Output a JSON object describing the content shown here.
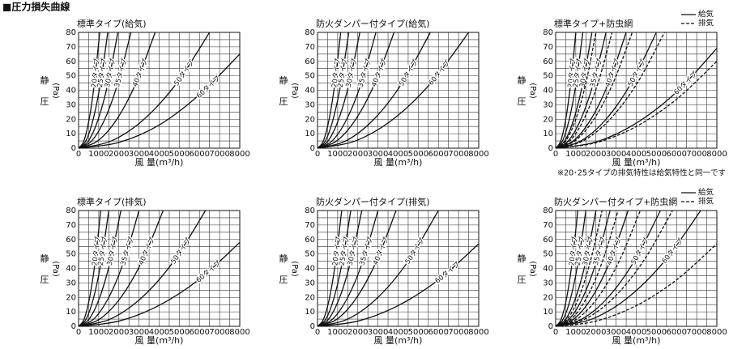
{
  "title": "■圧力損失曲線",
  "note": "※20･25タイプの排気特性は給気特性と同一です",
  "chart_data": [
    {
      "type": "line",
      "title": "標準タイプ(給気)",
      "x_label": "風 量(m³/h)",
      "y_label": [
        "静",
        "(Pa)",
        "圧"
      ],
      "xlim": [
        0,
        8000
      ],
      "ylim": [
        0,
        80
      ],
      "xticks": [
        0,
        1000,
        2000,
        3000,
        4000,
        5000,
        6000,
        7000,
        8000
      ],
      "yticks": [
        0,
        10,
        20,
        30,
        40,
        50,
        60,
        70,
        80
      ],
      "grid": true,
      "color": "#111111",
      "series": [
        {
          "name": "20タイプ",
          "x": [
            0,
            263,
            525,
            788,
            1050
          ],
          "values": [
            0,
            5,
            20,
            45,
            80
          ]
        },
        {
          "name": "25タイプ",
          "x": [
            0,
            363,
            725,
            1088,
            1450
          ],
          "values": [
            0,
            5,
            20,
            45,
            80
          ]
        },
        {
          "name": "30タイプ",
          "x": [
            0,
            488,
            975,
            1463,
            1950
          ],
          "values": [
            0,
            5,
            20,
            45,
            80
          ]
        },
        {
          "name": "35タイプ",
          "x": [
            0,
            650,
            1300,
            1950,
            2600
          ],
          "values": [
            0,
            5,
            20,
            45,
            80
          ]
        },
        {
          "name": "40タイプ",
          "x": [
            0,
            950,
            1900,
            2850,
            3800
          ],
          "values": [
            0,
            5,
            20,
            45,
            80
          ]
        },
        {
          "name": "50タイプ",
          "x": [
            0,
            1625,
            3250,
            4875,
            6500
          ],
          "values": [
            0,
            5,
            20,
            45,
            80
          ]
        },
        {
          "name": "60タイプ",
          "x": [
            0,
            2000,
            4000,
            6000,
            8000
          ],
          "values": [
            0,
            4,
            16,
            37,
            65
          ]
        }
      ]
    },
    {
      "type": "line",
      "title": "防火ダンパー付タイプ(給気)",
      "x_label": "風 量(m³/h)",
      "y_label": [
        "静",
        "(Pa)",
        "圧"
      ],
      "xlim": [
        0,
        8000
      ],
      "ylim": [
        0,
        80
      ],
      "xticks": [
        0,
        1000,
        2000,
        3000,
        4000,
        5000,
        6000,
        7000,
        8000
      ],
      "yticks": [
        0,
        10,
        20,
        30,
        40,
        50,
        60,
        70,
        80
      ],
      "grid": true,
      "color": "#111111",
      "series": [
        {
          "name": "20タイプ",
          "x": [
            0,
            288,
            575,
            863,
            1150
          ],
          "values": [
            0,
            5,
            20,
            45,
            80
          ]
        },
        {
          "name": "25タイプ",
          "x": [
            0,
            388,
            775,
            1163,
            1550
          ],
          "values": [
            0,
            5,
            20,
            45,
            80
          ]
        },
        {
          "name": "30タイプ",
          "x": [
            0,
            525,
            1050,
            1575,
            2100
          ],
          "values": [
            0,
            5,
            20,
            45,
            80
          ]
        },
        {
          "name": "35タイプ",
          "x": [
            0,
            725,
            1450,
            2175,
            2900
          ],
          "values": [
            0,
            5,
            20,
            45,
            80
          ]
        },
        {
          "name": "40タイプ",
          "x": [
            0,
            950,
            1900,
            2850,
            3800
          ],
          "values": [
            0,
            5,
            20,
            45,
            80
          ]
        },
        {
          "name": "50タイプ",
          "x": [
            0,
            1400,
            2800,
            4200,
            5600
          ],
          "values": [
            0,
            5,
            20,
            45,
            80
          ]
        },
        {
          "name": "60タイプ",
          "x": [
            0,
            1875,
            3750,
            5625,
            7500
          ],
          "values": [
            0,
            5,
            20,
            45,
            80
          ]
        }
      ]
    },
    {
      "type": "line",
      "title": "標準タイプ+防虫網",
      "x_label": "風 量(m³/h)",
      "y_label": [
        "静",
        "(Pa)",
        "圧"
      ],
      "xlim": [
        0,
        8000
      ],
      "ylim": [
        0,
        80
      ],
      "xticks": [
        0,
        1000,
        2000,
        3000,
        4000,
        5000,
        6000,
        7000,
        8000
      ],
      "yticks": [
        0,
        10,
        20,
        30,
        40,
        50,
        60,
        70,
        80
      ],
      "grid": true,
      "color": "#111111",
      "legend": [
        {
          "label": "給気",
          "dash": "solid"
        },
        {
          "label": "排気",
          "dash": "dashed"
        }
      ],
      "series": [
        {
          "name": "20タイプ",
          "dash": "solid",
          "x": [
            0,
            250,
            500,
            750,
            1000
          ],
          "values": [
            0,
            5,
            20,
            45,
            80
          ]
        },
        {
          "name": "25タイプ",
          "dash": "solid",
          "x": [
            0,
            338,
            675,
            1013,
            1350
          ],
          "values": [
            0,
            5,
            20,
            45,
            80
          ]
        },
        {
          "name": "30タイプ",
          "dash": "solid",
          "x": [
            0,
            450,
            900,
            1350,
            1800
          ],
          "values": [
            0,
            5,
            20,
            45,
            80
          ]
        },
        {
          "name": "35タイプ",
          "dash": "solid",
          "x": [
            0,
            625,
            1250,
            1875,
            2500
          ],
          "values": [
            0,
            5,
            20,
            45,
            80
          ]
        },
        {
          "name": "40タイプ",
          "dash": "solid",
          "x": [
            0,
            875,
            1750,
            2625,
            3500
          ],
          "values": [
            0,
            5,
            20,
            45,
            80
          ]
        },
        {
          "name": "50タイプ",
          "dash": "solid",
          "x": [
            0,
            1250,
            2500,
            3750,
            5000
          ],
          "values": [
            0,
            5,
            20,
            45,
            80
          ]
        },
        {
          "name": "60タイプ",
          "dash": "solid",
          "x": [
            0,
            2000,
            4000,
            6000,
            8000
          ],
          "values": [
            0,
            4.3,
            17.3,
            38.8,
            69
          ]
        },
        {
          "dash": "dashed",
          "x": [
            0,
            500,
            1000,
            1500,
            2000
          ],
          "values": [
            0,
            5,
            20,
            45,
            80
          ]
        },
        {
          "dash": "dashed",
          "x": [
            0,
            700,
            1400,
            2100,
            2800
          ],
          "values": [
            0,
            5,
            20,
            45,
            80
          ]
        },
        {
          "dash": "dashed",
          "x": [
            0,
            950,
            1900,
            2850,
            3800
          ],
          "values": [
            0,
            5,
            20,
            45,
            80
          ]
        },
        {
          "dash": "dashed",
          "x": [
            0,
            1350,
            2700,
            4050,
            5400
          ],
          "values": [
            0,
            5,
            20,
            45,
            80
          ]
        },
        {
          "dash": "dashed",
          "x": [
            0,
            2000,
            4000,
            6000,
            8000
          ],
          "values": [
            0,
            3.8,
            15,
            33.8,
            60
          ]
        }
      ]
    },
    {
      "type": "line",
      "title": "標準タイプ(排気)",
      "x_label": "風 量(m³/h)",
      "y_label": [
        "静",
        "(Pa)",
        "圧"
      ],
      "xlim": [
        0,
        8000
      ],
      "ylim": [
        0,
        80
      ],
      "xticks": [
        0,
        1000,
        2000,
        3000,
        4000,
        5000,
        6000,
        7000,
        8000
      ],
      "yticks": [
        0,
        10,
        20,
        30,
        40,
        50,
        60,
        70,
        80
      ],
      "grid": true,
      "color": "#111111",
      "series": [
        {
          "name": "20タイプ",
          "x": [
            0,
            275,
            550,
            825,
            1100
          ],
          "values": [
            0,
            5,
            20,
            45,
            80
          ]
        },
        {
          "name": "25タイプ",
          "x": [
            0,
            375,
            750,
            1125,
            1500
          ],
          "values": [
            0,
            5,
            20,
            45,
            80
          ]
        },
        {
          "name": "30タイプ",
          "x": [
            0,
            525,
            1050,
            1575,
            2100
          ],
          "values": [
            0,
            5,
            20,
            45,
            80
          ]
        },
        {
          "name": "35タイプ",
          "x": [
            0,
            750,
            1500,
            2250,
            3000
          ],
          "values": [
            0,
            5,
            20,
            45,
            80
          ]
        },
        {
          "name": "40タイプ",
          "x": [
            0,
            1050,
            2100,
            3150,
            4200
          ],
          "values": [
            0,
            5,
            20,
            45,
            80
          ]
        },
        {
          "name": "50タイプ",
          "x": [
            0,
            1575,
            3150,
            4725,
            6300
          ],
          "values": [
            0,
            5,
            20,
            45,
            80
          ]
        },
        {
          "name": "60タイプ",
          "x": [
            0,
            2000,
            4000,
            6000,
            8000
          ],
          "values": [
            0,
            3.6,
            14.5,
            32.6,
            58
          ]
        }
      ]
    },
    {
      "type": "line",
      "title": "防火ダンパー付タイプ(排気)",
      "x_label": "風 量(m³/h)",
      "y_label": [
        "静",
        "(Pa)",
        "圧"
      ],
      "xlim": [
        0,
        8000
      ],
      "ylim": [
        0,
        80
      ],
      "xticks": [
        0,
        1000,
        2000,
        3000,
        4000,
        5000,
        6000,
        7000,
        8000
      ],
      "yticks": [
        0,
        10,
        20,
        30,
        40,
        50,
        60,
        70,
        80
      ],
      "grid": true,
      "color": "#111111",
      "series": [
        {
          "name": "20タイプ",
          "x": [
            0,
            300,
            600,
            900,
            1200
          ],
          "values": [
            0,
            5,
            20,
            45,
            80
          ]
        },
        {
          "name": "25タイプ",
          "x": [
            0,
            413,
            825,
            1238,
            1650
          ],
          "values": [
            0,
            5,
            20,
            45,
            80
          ]
        },
        {
          "name": "30タイプ",
          "x": [
            0,
            550,
            1100,
            1650,
            2200
          ],
          "values": [
            0,
            5,
            20,
            45,
            80
          ]
        },
        {
          "name": "35タイプ",
          "x": [
            0,
            750,
            1500,
            2250,
            3000
          ],
          "values": [
            0,
            5,
            20,
            45,
            80
          ]
        },
        {
          "name": "40タイプ",
          "x": [
            0,
            975,
            1950,
            2925,
            3900
          ],
          "values": [
            0,
            5,
            20,
            45,
            80
          ]
        },
        {
          "name": "50タイプ",
          "x": [
            0,
            1500,
            3000,
            4500,
            6000
          ],
          "values": [
            0,
            5,
            20,
            45,
            80
          ]
        },
        {
          "name": "60タイプ",
          "x": [
            0,
            2000,
            4000,
            6000,
            8000
          ],
          "values": [
            0,
            3.6,
            14.3,
            32.1,
            57
          ]
        }
      ]
    },
    {
      "type": "line",
      "title": "防火ダンパー付タイプ+防虫網",
      "x_label": "風 量(m³/h)",
      "y_label": [
        "静",
        "(Pa)",
        "圧"
      ],
      "xlim": [
        0,
        8000
      ],
      "ylim": [
        0,
        80
      ],
      "xticks": [
        0,
        1000,
        2000,
        3000,
        4000,
        5000,
        6000,
        7000,
        8000
      ],
      "yticks": [
        0,
        10,
        20,
        30,
        40,
        50,
        60,
        70,
        80
      ],
      "grid": true,
      "color": "#111111",
      "legend": [
        {
          "label": "給気",
          "dash": "solid"
        },
        {
          "label": "排気",
          "dash": "dashed"
        }
      ],
      "series": [
        {
          "name": "20タイプ",
          "dash": "solid",
          "x": [
            0,
            275,
            550,
            825,
            1100
          ],
          "values": [
            0,
            5,
            20,
            45,
            80
          ]
        },
        {
          "name": "25タイプ",
          "dash": "solid",
          "x": [
            0,
            375,
            750,
            1125,
            1500
          ],
          "values": [
            0,
            5,
            20,
            45,
            80
          ]
        },
        {
          "name": "30タイプ",
          "dash": "solid",
          "x": [
            0,
            500,
            1000,
            1500,
            2000
          ],
          "values": [
            0,
            5,
            20,
            45,
            80
          ]
        },
        {
          "name": "35タイプ",
          "dash": "solid",
          "x": [
            0,
            675,
            1350,
            2025,
            2700
          ],
          "values": [
            0,
            5,
            20,
            45,
            80
          ]
        },
        {
          "name": "40タイプ",
          "dash": "solid",
          "x": [
            0,
            900,
            1800,
            2700,
            3600
          ],
          "values": [
            0,
            5,
            20,
            45,
            80
          ]
        },
        {
          "name": "50タイプ",
          "dash": "solid",
          "x": [
            0,
            1300,
            2600,
            3900,
            5200
          ],
          "values": [
            0,
            5,
            20,
            45,
            80
          ]
        },
        {
          "name": "60タイプ",
          "dash": "solid",
          "x": [
            0,
            1800,
            3600,
            5400,
            7200
          ],
          "values": [
            0,
            5,
            20,
            45,
            80
          ]
        },
        {
          "dash": "dashed",
          "x": [
            0,
            575,
            1150,
            1725,
            2300
          ],
          "values": [
            0,
            5,
            20,
            45,
            80
          ]
        },
        {
          "dash": "dashed",
          "x": [
            0,
            775,
            1550,
            2325,
            3100
          ],
          "values": [
            0,
            5,
            20,
            45,
            80
          ]
        },
        {
          "dash": "dashed",
          "x": [
            0,
            1050,
            2100,
            3150,
            4200
          ],
          "values": [
            0,
            5,
            20,
            45,
            80
          ]
        },
        {
          "dash": "dashed",
          "x": [
            0,
            1450,
            2900,
            4350,
            5800
          ],
          "values": [
            0,
            5,
            20,
            45,
            80
          ]
        },
        {
          "dash": "dashed",
          "x": [
            0,
            2000,
            4000,
            6000,
            8000
          ],
          "values": [
            0,
            3.6,
            14.3,
            32.1,
            57
          ]
        }
      ]
    }
  ]
}
